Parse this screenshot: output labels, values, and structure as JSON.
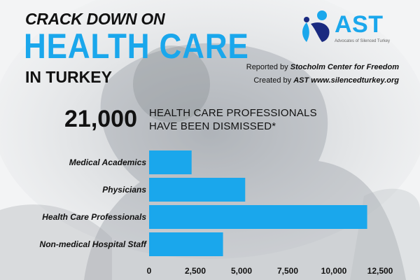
{
  "header": {
    "line1": "CRACK DOWN ON",
    "line2": "HEALTH CARE",
    "line3": "IN TURKEY"
  },
  "logo": {
    "name": "AST",
    "tagline": "Advocates of Silenced Turkey",
    "color": "#1aa7ec"
  },
  "credits": {
    "reported_prefix": "Reported by",
    "reported_by": "Stocholm Center for Freedom",
    "created_prefix": "Created by",
    "created_by": "AST www.silencedturkey.org"
  },
  "headline": {
    "number": "21,000",
    "line1": "HEALTH CARE PROFESSIONALS",
    "line2": "HAVE BEEN DISMISSED*"
  },
  "chart_data": {
    "type": "bar",
    "orientation": "horizontal",
    "categories": [
      "Medical Academics",
      "Physicians",
      "Health Care Professionals",
      "Non-medical Hospital Staff"
    ],
    "values": [
      2300,
      5200,
      11800,
      4000
    ],
    "xlim": [
      0,
      12500
    ],
    "xticks": [
      "0",
      "2,500",
      "5,000",
      "7,500",
      "10,000",
      "12,500"
    ],
    "bar_color": "#1aa7ec",
    "grid": false
  }
}
